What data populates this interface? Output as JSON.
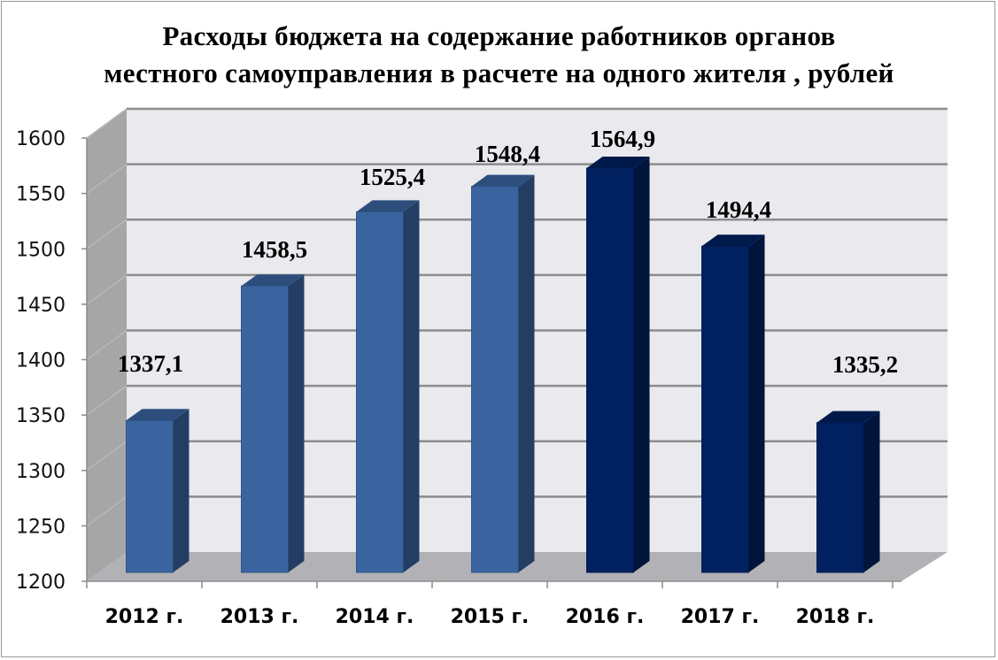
{
  "chart_data": {
    "type": "bar",
    "style": "3d-column",
    "title": "Расходы бюджета на содержание работников органов местного самоуправления в расчете на одного жителя , рублей",
    "title_lines": [
      "Расходы бюджета на содержание работников органов",
      "местного самоуправления в расчете на одного жителя , рублей"
    ],
    "categories": [
      "2012 г.",
      "2013 г.",
      "2014 г.",
      "2015 г.",
      "2016 г.",
      "2017 г.",
      "2018 г."
    ],
    "values": [
      1337.1,
      1458.5,
      1525.4,
      1548.4,
      1564.9,
      1494.4,
      1335.2
    ],
    "data_labels": [
      "1337,1",
      "1458,5",
      "1525,4",
      "1548,4",
      "1564,9",
      "1494,4",
      "1335,2"
    ],
    "bar_colors": [
      "#3a64a0",
      "#3a64a0",
      "#3a64a0",
      "#3a64a0",
      "#002060",
      "#002060",
      "#002060"
    ],
    "xlabel": "",
    "ylabel": "",
    "ylim": [
      1200,
      1600
    ],
    "yticks": [
      1200,
      1250,
      1300,
      1350,
      1400,
      1450,
      1500,
      1550,
      1600
    ],
    "grid": true,
    "legend": null
  },
  "colors": {
    "wall": "#e9e9ee",
    "side_wall": "#a6a6a6",
    "floor": "#b2b2b6",
    "gridline": "#8c8c8c",
    "light_bar": "#3a64a0",
    "dark_bar": "#002060"
  }
}
